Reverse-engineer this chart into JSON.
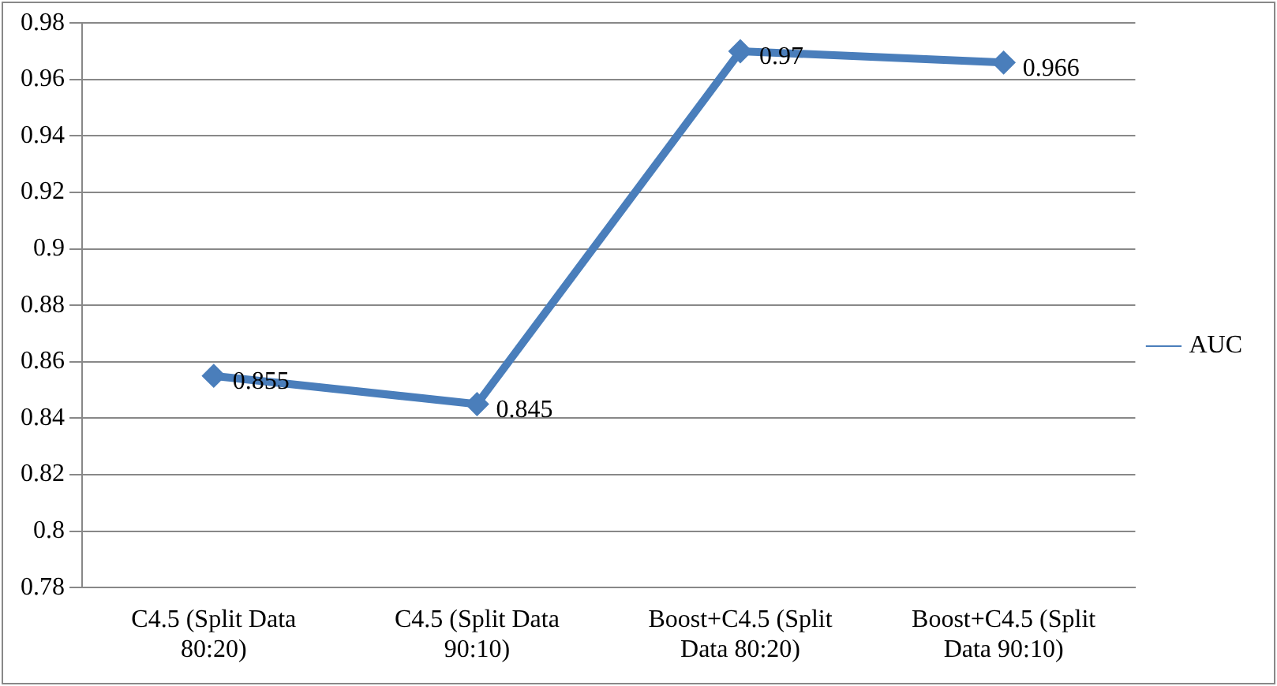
{
  "chart_data": {
    "type": "line",
    "categories": [
      "C4.5 (Split Data 80:20)",
      "C4.5 (Split Data 90:10)",
      "Boost+C4.5 (Split Data 80:20)",
      "Boost+C4.5 (Split Data 90:10)"
    ],
    "series": [
      {
        "name": "AUC",
        "color": "#4a7ebb",
        "values": [
          0.855,
          0.845,
          0.97,
          0.966
        ]
      }
    ],
    "ylim": [
      0.78,
      0.98
    ],
    "yticks": [
      0.78,
      0.8,
      0.82,
      0.84,
      0.86,
      0.88,
      0.9,
      0.92,
      0.94,
      0.96,
      0.98
    ],
    "grid": "y",
    "legend": "right",
    "marker": "diamond",
    "line_style": "solid",
    "data_labels": true
  }
}
